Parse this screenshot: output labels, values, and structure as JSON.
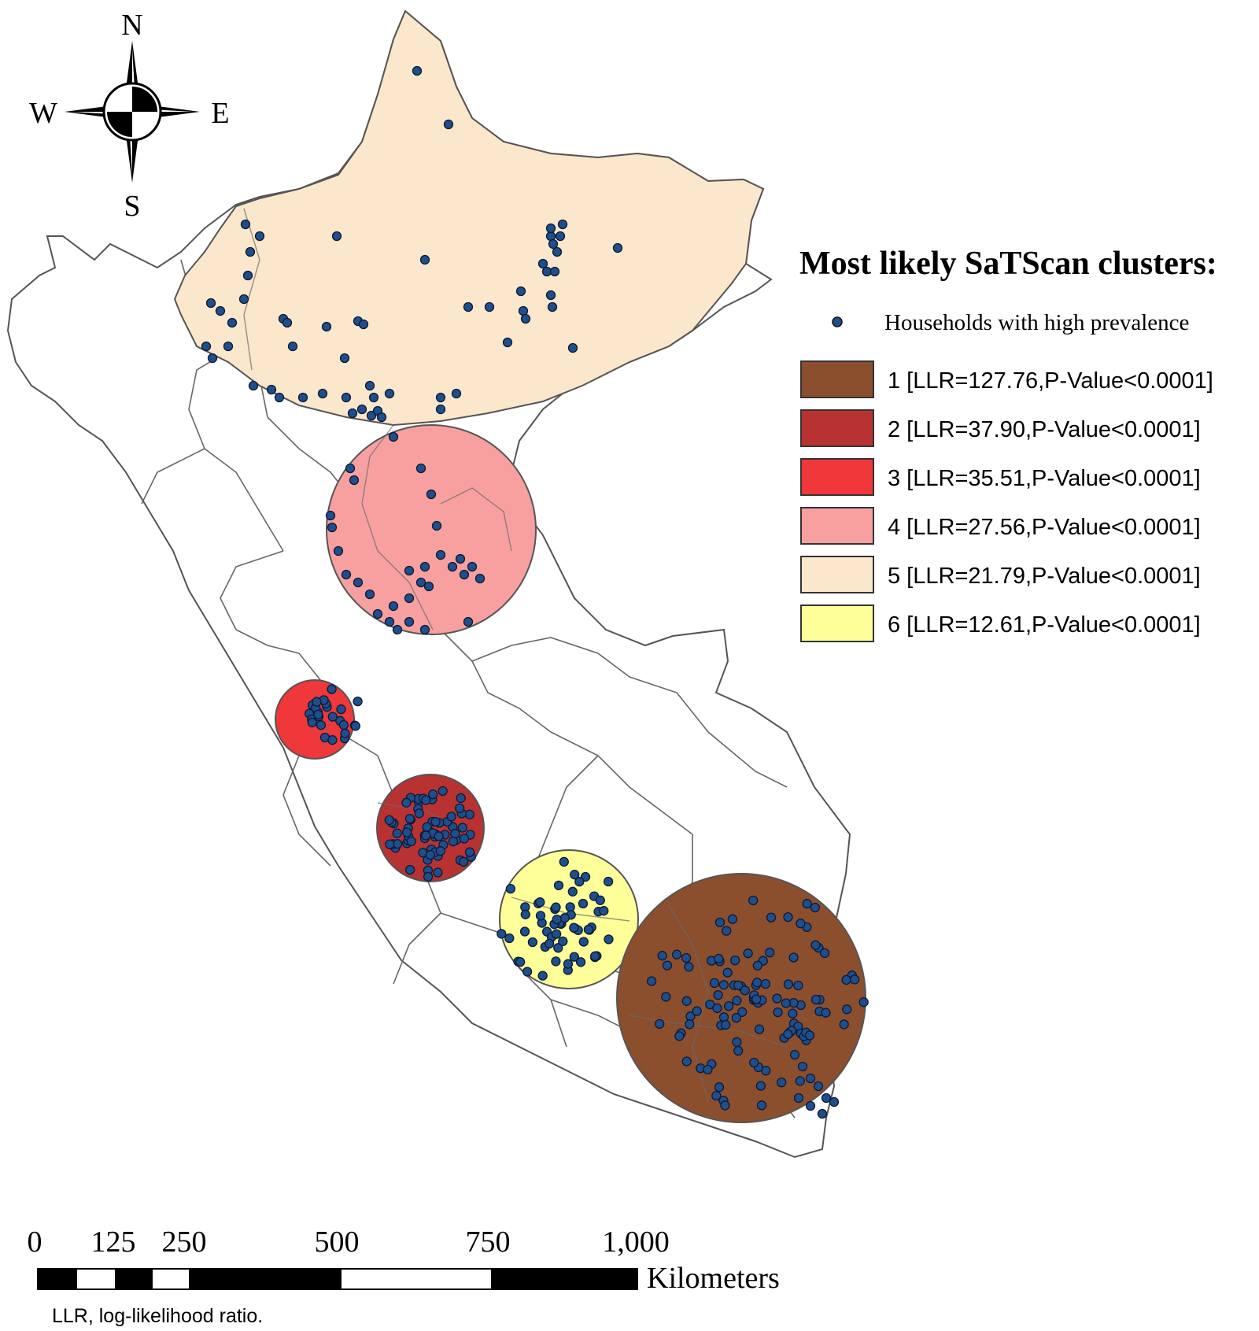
{
  "compass": {
    "north": "N",
    "south": "S",
    "east": "E",
    "west": "W"
  },
  "legend": {
    "title": "Most likely SaTScan clusters:",
    "point_label": "Households with high prevalence",
    "point_color": "#1f4e8c",
    "items": [
      {
        "label": "1 [LLR=127.76,P-Value<0.0001]",
        "color": "#8b4f2e"
      },
      {
        "label": "2 [LLR=37.90,P-Value<0.0001]",
        "color": "#b93232"
      },
      {
        "label": "3 [LLR=35.51,P-Value<0.0001]",
        "color": "#f0373a"
      },
      {
        "label": "4 [LLR=27.56,P-Value<0.0001]",
        "color": "#f8a0a0"
      },
      {
        "label": "5 [LLR=21.79,P-Value<0.0001]",
        "color": "#fbe7cc"
      },
      {
        "label": "6 [LLR=12.61,P-Value<0.0001]",
        "color": "#ffff99"
      }
    ]
  },
  "scale_bar": {
    "ticks": [
      "0",
      "125",
      "250",
      "500",
      "750",
      "1,000"
    ],
    "unit": "Kilometers"
  },
  "footnote": "LLR, log-likelihood ratio."
}
